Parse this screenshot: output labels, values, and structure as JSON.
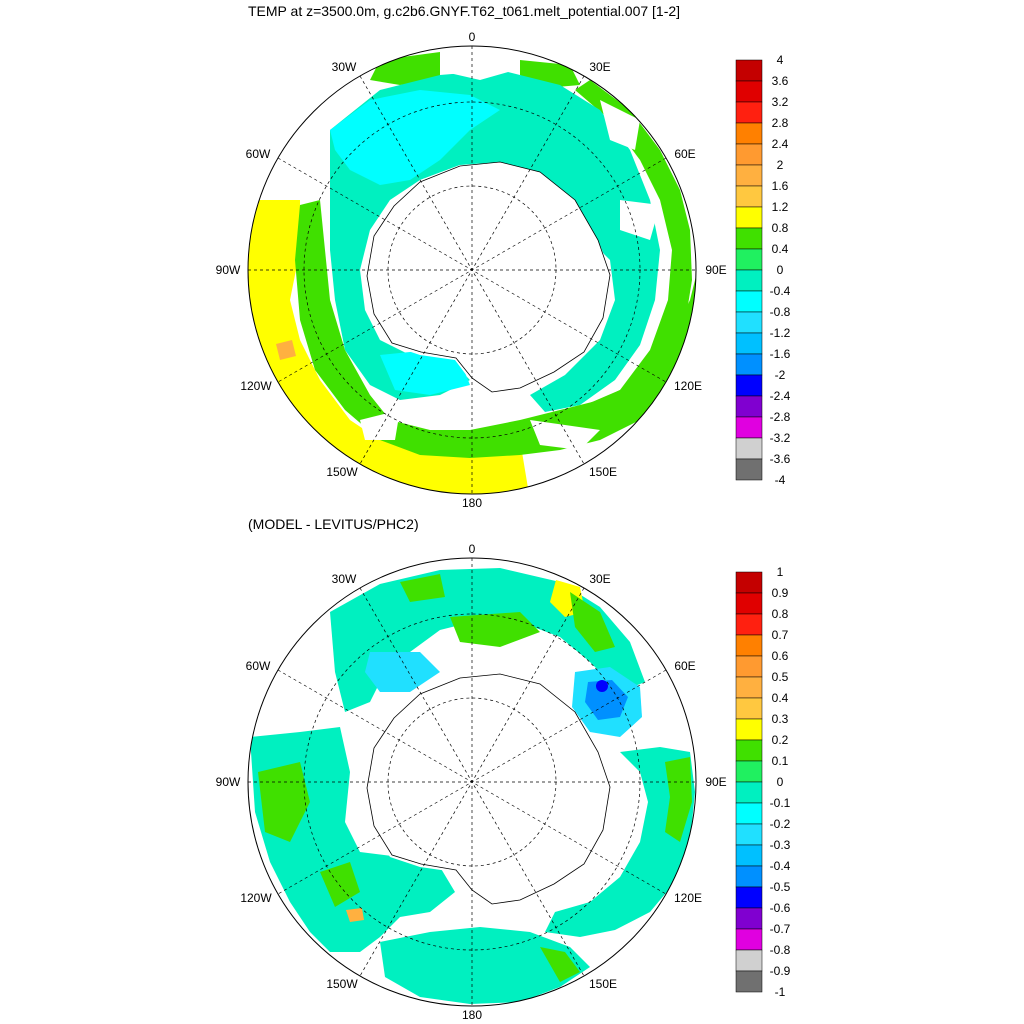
{
  "titles": {
    "top": "TEMP at z=3500.0m, g.c2b6.GNYF.T62_t061.melt_potential.007 [1-2]",
    "bottom": "(MODEL - LEVITUS/PHC2)"
  },
  "longitude_labels": [
    "0",
    "30E",
    "60E",
    "90E",
    "120E",
    "150E",
    "180",
    "150W",
    "120W",
    "90W",
    "60W",
    "30W"
  ],
  "colorbars": {
    "top": {
      "labels": [
        "4",
        "3.6",
        "3.2",
        "2.8",
        "2.4",
        "2",
        "1.6",
        "1.2",
        "0.8",
        "0.4",
        "0",
        "-0.4",
        "-0.8",
        "-1.2",
        "-1.6",
        "-2",
        "-2.4",
        "-2.8",
        "-3.2",
        "-3.6",
        "-4"
      ],
      "colors": [
        "#c40000",
        "#e00000",
        "#ff2010",
        "#ff8000",
        "#ff9a30",
        "#ffb040",
        "#ffc840",
        "#ffff00",
        "#40e000",
        "#20f060",
        "#00f0c0",
        "#00ffff",
        "#20e0ff",
        "#00c0ff",
        "#0090ff",
        "#0000ff",
        "#8000d0",
        "#e000e0",
        "#d0d0d0",
        "#707070"
      ]
    },
    "bottom": {
      "labels": [
        "1",
        "0.9",
        "0.8",
        "0.7",
        "0.6",
        "0.5",
        "0.4",
        "0.3",
        "0.2",
        "0.1",
        "0",
        "-0.1",
        "-0.2",
        "-0.3",
        "-0.4",
        "-0.5",
        "-0.6",
        "-0.7",
        "-0.8",
        "-0.9",
        "-1"
      ],
      "colors": [
        "#c40000",
        "#e00000",
        "#ff2010",
        "#ff8000",
        "#ff9a30",
        "#ffb040",
        "#ffc840",
        "#ffff00",
        "#40e000",
        "#20f060",
        "#00f0c0",
        "#00ffff",
        "#20e0ff",
        "#00c0ff",
        "#0090ff",
        "#0000ff",
        "#8000d0",
        "#e000e0",
        "#d0d0d0",
        "#707070"
      ]
    }
  },
  "field_colors": {
    "yellow": "#ffff00",
    "orange": "#ffb040",
    "green": "#40e000",
    "lightgreen": "#20f060",
    "aqua": "#00f0c0",
    "cyan": "#00ffff",
    "lightblue": "#20e0ff",
    "blue": "#0090ff",
    "darkblue": "#0000ff"
  }
}
